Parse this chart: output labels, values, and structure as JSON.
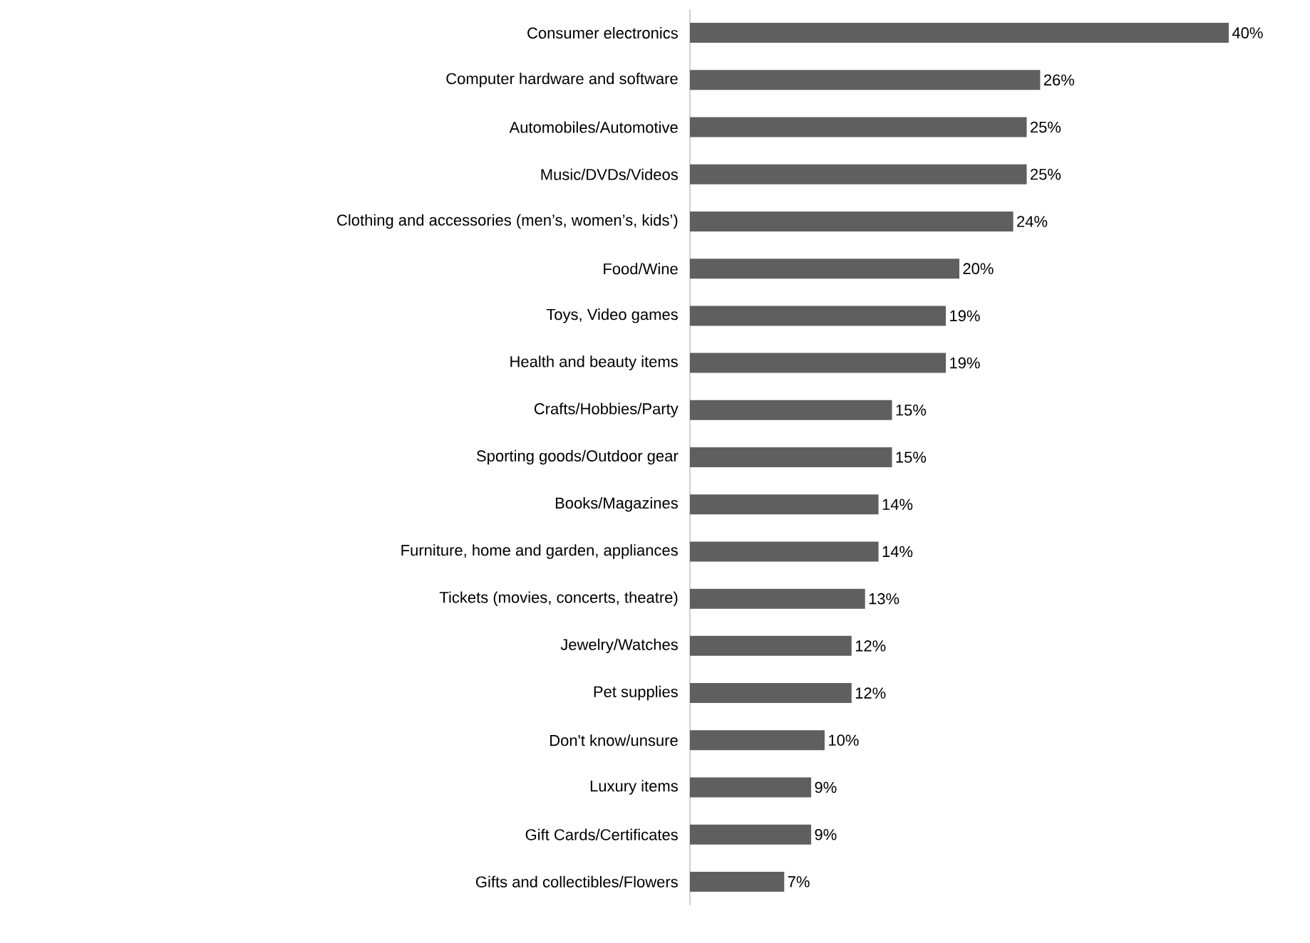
{
  "chart_data": {
    "type": "bar",
    "orientation": "horizontal",
    "color": "#5f5f5f",
    "categories": [
      "Consumer electronics",
      "Computer hardware and software",
      "Automobiles/Automotive",
      "Music/DVDs/Videos",
      "Clothing and accessories (men’s, women’s, kids’)",
      "Food/Wine",
      "Toys, Video games",
      "Health and beauty items",
      "Crafts/Hobbies/Party",
      "Sporting goods/Outdoor gear",
      "Books/Magazines",
      "Furniture, home and garden, appliances",
      "Tickets (movies, concerts, theatre)",
      "Jewelry/Watches",
      "Pet supplies",
      "Don't know/unsure",
      "Luxury items",
      "Gift Cards/Certificates",
      "Gifts and collectibles/Flowers"
    ],
    "values": [
      40,
      26,
      25,
      25,
      24,
      20,
      19,
      19,
      15,
      15,
      14,
      14,
      13,
      12,
      12,
      10,
      9,
      9,
      7
    ],
    "value_labels": [
      "40%",
      "26%",
      "25%",
      "25%",
      "24%",
      "20%",
      "19%",
      "19%",
      "15%",
      "15%",
      "14%",
      "14%",
      "13%",
      "12%",
      "12%",
      "10%",
      "9%",
      "9%",
      "7%"
    ],
    "data_labels": false
  }
}
